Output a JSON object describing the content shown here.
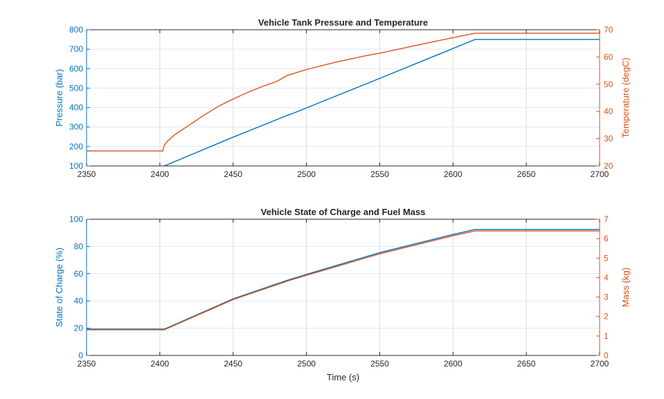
{
  "chart_data": [
    {
      "type": "line",
      "title": "Vehicle Tank Pressure and Temperature",
      "xlabel": "",
      "xlim": [
        2350,
        2700
      ],
      "xticks": [
        2350,
        2400,
        2450,
        2500,
        2550,
        2600,
        2650,
        2700
      ],
      "grid": true,
      "left_axis": {
        "label": "Pressure (bar)",
        "ylim": [
          100,
          800
        ],
        "ticks": [
          100,
          200,
          300,
          400,
          500,
          600,
          700,
          800
        ],
        "color": "#0072BD"
      },
      "right_axis": {
        "label": "Temperature (degC)",
        "ylim": [
          20,
          70
        ],
        "ticks": [
          20,
          30,
          40,
          50,
          60,
          70
        ],
        "color": "#D95319"
      },
      "series": [
        {
          "name": "Pressure",
          "axis": "left",
          "color": "#0072BD",
          "x": [
            2403,
            2450,
            2487,
            2490,
            2550,
            2615,
            2630,
            2700
          ],
          "y": [
            100,
            248,
            360,
            368,
            550,
            750,
            750,
            750
          ]
        },
        {
          "name": "Temperature",
          "axis": "right",
          "color": "#D95319",
          "x": [
            2350,
            2402,
            2403,
            2405,
            2410,
            2420,
            2430,
            2440,
            2450,
            2460,
            2470,
            2480,
            2487,
            2490,
            2500,
            2520,
            2540,
            2550,
            2570,
            2590,
            2615,
            2700
          ],
          "y": [
            25.5,
            25.5,
            27.5,
            29.0,
            31.4,
            35.0,
            38.6,
            41.9,
            44.6,
            47.0,
            49.2,
            51.1,
            53.2,
            53.7,
            55.4,
            58.1,
            60.4,
            61.4,
            63.7,
            66.0,
            68.7,
            68.7
          ]
        }
      ]
    },
    {
      "type": "line",
      "title": "Vehicle State of Charge and Fuel Mass",
      "xlabel": "Time (s)",
      "xlim": [
        2350,
        2700
      ],
      "xticks": [
        2350,
        2400,
        2450,
        2500,
        2550,
        2600,
        2650,
        2700
      ],
      "grid": true,
      "left_axis": {
        "label": "State of Charge (%)",
        "ylim": [
          0,
          100
        ],
        "ticks": [
          0,
          20,
          40,
          60,
          80,
          100
        ],
        "color": "#0072BD"
      },
      "right_axis": {
        "label": "Mass (kg)",
        "ylim": [
          0,
          7
        ],
        "ticks": [
          0,
          1,
          2,
          3,
          4,
          5,
          6,
          7
        ],
        "color": "#D95319"
      },
      "series": [
        {
          "name": "State of Charge",
          "axis": "left",
          "color": "#0072BD",
          "x": [
            2350,
            2403,
            2450,
            2487,
            2500,
            2550,
            2600,
            2615,
            2700
          ],
          "y": [
            19.3,
            19.3,
            41.5,
            55.2,
            59.5,
            75.5,
            88.8,
            92.5,
            92.5
          ]
        },
        {
          "name": "Fuel Mass",
          "axis": "right",
          "color": "#D95319",
          "x": [
            2350,
            2403,
            2450,
            2487,
            2500,
            2550,
            2600,
            2615,
            2700
          ],
          "y": [
            1.32,
            1.32,
            2.87,
            3.82,
            4.12,
            5.22,
            6.15,
            6.4,
            6.4
          ]
        }
      ]
    }
  ]
}
